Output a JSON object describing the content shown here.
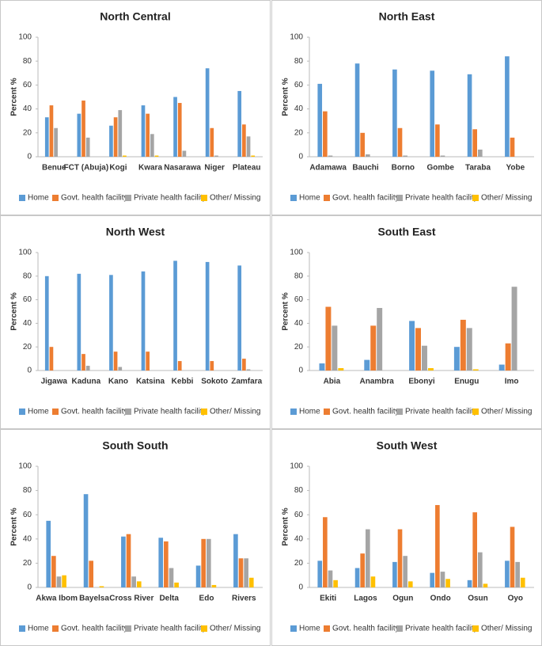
{
  "chart_data": [
    {
      "type": "bar",
      "title": "North Central",
      "ylabel": "Percent %",
      "categories": [
        "Benue",
        "FCT (Abuja)",
        "Kogi",
        "Kwara",
        "Nasarawa",
        "Niger",
        "Plateau"
      ],
      "series": [
        {
          "name": "Home",
          "color": "#5b9bd5",
          "values": [
            33,
            36,
            26,
            43,
            50,
            74,
            55
          ]
        },
        {
          "name": "Govt. health facility",
          "color": "#ed7d31",
          "values": [
            43,
            47,
            33,
            36,
            45,
            24,
            27
          ]
        },
        {
          "name": "Private health facility",
          "color": "#a5a5a5",
          "values": [
            24,
            16,
            39,
            19,
            5,
            1,
            17
          ]
        },
        {
          "name": "Other/ Missing",
          "color": "#ffc000",
          "values": [
            0,
            0,
            1,
            1,
            0,
            0,
            1
          ]
        }
      ],
      "ylim": [
        0,
        100
      ],
      "yticks": [
        0,
        20,
        40,
        60,
        80,
        100
      ]
    },
    {
      "type": "bar",
      "title": "North East",
      "ylabel": "Percent %",
      "categories": [
        "Adamawa",
        "Bauchi",
        "Borno",
        "Gombe",
        "Taraba",
        "Yobe"
      ],
      "series": [
        {
          "name": "Home",
          "color": "#5b9bd5",
          "values": [
            61,
            78,
            73,
            72,
            69,
            84
          ]
        },
        {
          "name": "Govt. health facility",
          "color": "#ed7d31",
          "values": [
            38,
            20,
            24,
            27,
            23,
            16
          ]
        },
        {
          "name": "Private health facility",
          "color": "#a5a5a5",
          "values": [
            1,
            2,
            1,
            1,
            6,
            0
          ]
        },
        {
          "name": "Other/ Missing",
          "color": "#ffc000",
          "values": [
            0,
            0,
            0,
            0,
            0,
            0
          ]
        }
      ],
      "ylim": [
        0,
        100
      ],
      "yticks": [
        0,
        20,
        40,
        60,
        80,
        100
      ]
    },
    {
      "type": "bar",
      "title": "North West",
      "ylabel": "Percent %",
      "categories": [
        "Jigawa",
        "Kaduna",
        "Kano",
        "Katsina",
        "Kebbi",
        "Sokoto",
        "Zamfara"
      ],
      "series": [
        {
          "name": "Home",
          "color": "#5b9bd5",
          "values": [
            80,
            82,
            81,
            84,
            93,
            92,
            89
          ]
        },
        {
          "name": "Govt. health facility",
          "color": "#ed7d31",
          "values": [
            20,
            14,
            16,
            16,
            8,
            8,
            10
          ]
        },
        {
          "name": "Private health facility",
          "color": "#a5a5a5",
          "values": [
            0,
            4,
            3,
            0,
            0,
            0,
            1
          ]
        },
        {
          "name": "Other/ Missing",
          "color": "#ffc000",
          "values": [
            0,
            0,
            0,
            0,
            0,
            0,
            0
          ]
        }
      ],
      "ylim": [
        0,
        100
      ],
      "yticks": [
        0,
        20,
        40,
        60,
        80,
        100
      ]
    },
    {
      "type": "bar",
      "title": "South East",
      "ylabel": "Percent %",
      "categories": [
        "Abia",
        "Anambra",
        "Ebonyi",
        "Enugu",
        "Imo"
      ],
      "series": [
        {
          "name": "Home",
          "color": "#5b9bd5",
          "values": [
            6,
            9,
            42,
            20,
            5
          ]
        },
        {
          "name": "Govt. health facility",
          "color": "#ed7d31",
          "values": [
            54,
            38,
            36,
            43,
            23
          ]
        },
        {
          "name": "Private health facility",
          "color": "#a5a5a5",
          "values": [
            38,
            53,
            21,
            36,
            71
          ]
        },
        {
          "name": "Other/ Missing",
          "color": "#ffc000",
          "values": [
            2,
            0,
            2,
            1,
            0
          ]
        }
      ],
      "ylim": [
        0,
        100
      ],
      "yticks": [
        0,
        20,
        40,
        60,
        80,
        100
      ]
    },
    {
      "type": "bar",
      "title": "South South",
      "ylabel": "Percent %",
      "categories": [
        "Akwa Ibom",
        "Bayelsa",
        "Cross River",
        "Delta",
        "Edo",
        "Rivers"
      ],
      "series": [
        {
          "name": "Home",
          "color": "#5b9bd5",
          "values": [
            55,
            77,
            42,
            41,
            18,
            44
          ]
        },
        {
          "name": "Govt. health facility",
          "color": "#ed7d31",
          "values": [
            26,
            22,
            44,
            38,
            40,
            24
          ]
        },
        {
          "name": "Private health facility",
          "color": "#a5a5a5",
          "values": [
            9,
            0,
            9,
            16,
            40,
            24
          ]
        },
        {
          "name": "Other/ Missing",
          "color": "#ffc000",
          "values": [
            10,
            1,
            5,
            4,
            2,
            8
          ]
        }
      ],
      "ylim": [
        0,
        100
      ],
      "yticks": [
        0,
        20,
        40,
        60,
        80,
        100
      ]
    },
    {
      "type": "bar",
      "title": "South West",
      "ylabel": "Percent %",
      "categories": [
        "Ekiti",
        "Lagos",
        "Ogun",
        "Ondo",
        "Osun",
        "Oyo"
      ],
      "series": [
        {
          "name": "Home",
          "color": "#5b9bd5",
          "values": [
            22,
            16,
            21,
            12,
            6,
            22
          ]
        },
        {
          "name": "Govt. health facility",
          "color": "#ed7d31",
          "values": [
            58,
            28,
            48,
            68,
            62,
            50
          ]
        },
        {
          "name": "Private health facility",
          "color": "#a5a5a5",
          "values": [
            14,
            48,
            26,
            13,
            29,
            21
          ]
        },
        {
          "name": "Other/ Missing",
          "color": "#ffc000",
          "values": [
            6,
            9,
            5,
            7,
            3,
            8
          ]
        }
      ],
      "ylim": [
        0,
        100
      ],
      "yticks": [
        0,
        20,
        40,
        60,
        80,
        100
      ]
    }
  ]
}
